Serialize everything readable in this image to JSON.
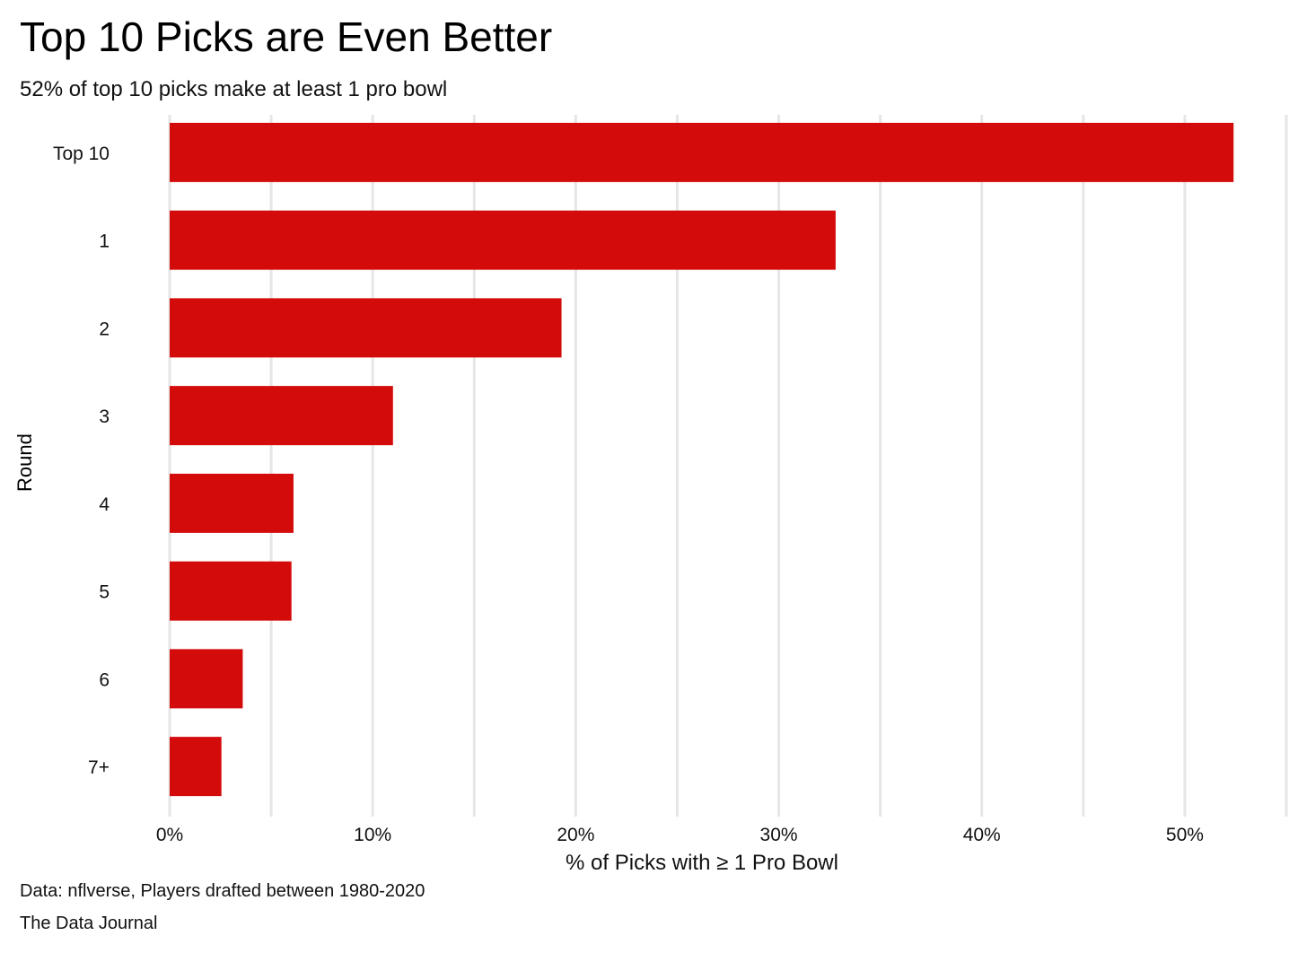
{
  "chart_data": {
    "type": "bar",
    "orientation": "horizontal",
    "title": "Top 10 Picks are Even Better",
    "subtitle": "52% of top 10 picks make at least 1 pro bowl",
    "xlabel": "% of Picks with ≥ 1 Pro Bowl",
    "ylabel": "Round",
    "categories": [
      "Top 10",
      "1",
      "2",
      "3",
      "4",
      "5",
      "6",
      "7+"
    ],
    "values": [
      52.4,
      32.8,
      19.3,
      11.0,
      6.1,
      6.0,
      3.6,
      2.55
    ],
    "xlim": [
      0,
      55
    ],
    "xticks": [
      0,
      10,
      20,
      30,
      40,
      50
    ],
    "xtick_labels": [
      "0%",
      "10%",
      "20%",
      "30%",
      "40%",
      "50%"
    ],
    "grid": "vertical major and minor",
    "bar_color": "#d40b0b",
    "caption": [
      "Data: nflverse, Players drafted between 1980-2020",
      "The Data Journal"
    ]
  }
}
